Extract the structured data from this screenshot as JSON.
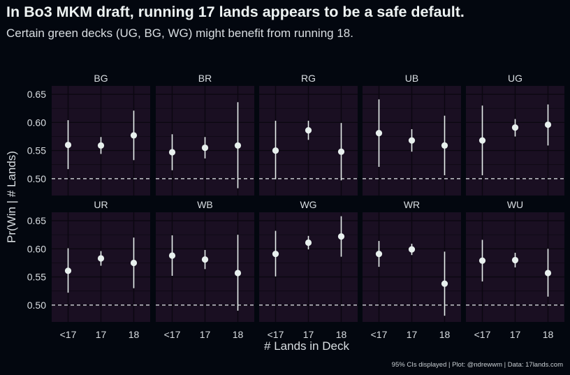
{
  "title": "In Bo3 MKM draft, running 17 lands appears to be a safe default.",
  "subtitle": "Certain green decks (UG, BG, WG) might benefit from running 18.",
  "caption": "95% CIs displayed | Plot: @ndrewwm | Data: 17lands.com",
  "colors": {
    "background": "#03070f",
    "panel": "#1a0f22",
    "grid": "#0b0710",
    "point": "#e8f0ee",
    "reference_line": "#e8eef0"
  },
  "chart_data": {
    "type": "scatter",
    "subtype": "point-range facet grid",
    "xlabel": "# Lands in Deck",
    "ylabel": "Pr(Win | # Lands)",
    "categories": [
      "<17",
      "17",
      "18"
    ],
    "ylim": [
      0.47,
      0.665
    ],
    "yticks": [
      0.5,
      0.55,
      0.6,
      0.65
    ],
    "ytick_labels": [
      "0.50",
      "0.55",
      "0.60",
      "0.65"
    ],
    "reference_line": {
      "y": 0.5,
      "style": "dashed"
    },
    "grid": true,
    "facets": [
      {
        "name": "BG",
        "values": [
          0.56,
          0.559,
          0.577
        ],
        "lower": [
          0.517,
          0.544,
          0.533
        ],
        "upper": [
          0.604,
          0.574,
          0.621
        ]
      },
      {
        "name": "BR",
        "values": [
          0.547,
          0.555,
          0.559
        ],
        "lower": [
          0.515,
          0.536,
          0.483
        ],
        "upper": [
          0.579,
          0.574,
          0.636
        ]
      },
      {
        "name": "RG",
        "values": [
          0.55,
          0.586,
          0.548
        ],
        "lower": [
          0.499,
          0.569,
          0.497
        ],
        "upper": [
          0.603,
          0.603,
          0.599
        ]
      },
      {
        "name": "UB",
        "values": [
          0.581,
          0.568,
          0.559
        ],
        "lower": [
          0.521,
          0.548,
          0.506
        ],
        "upper": [
          0.641,
          0.588,
          0.612
        ]
      },
      {
        "name": "UG",
        "values": [
          0.568,
          0.591,
          0.596
        ],
        "lower": [
          0.506,
          0.575,
          0.559
        ],
        "upper": [
          0.63,
          0.606,
          0.632
        ]
      },
      {
        "name": "UR",
        "values": [
          0.561,
          0.583,
          0.575
        ],
        "lower": [
          0.522,
          0.57,
          0.53
        ],
        "upper": [
          0.601,
          0.596,
          0.62
        ]
      },
      {
        "name": "WB",
        "values": [
          0.588,
          0.581,
          0.557
        ],
        "lower": [
          0.552,
          0.564,
          0.49
        ],
        "upper": [
          0.624,
          0.598,
          0.625
        ]
      },
      {
        "name": "WG",
        "values": [
          0.591,
          0.611,
          0.622
        ],
        "lower": [
          0.551,
          0.599,
          0.586
        ],
        "upper": [
          0.632,
          0.623,
          0.658
        ]
      },
      {
        "name": "WR",
        "values": [
          0.591,
          0.599,
          0.538
        ],
        "lower": [
          0.568,
          0.589,
          0.481
        ],
        "upper": [
          0.614,
          0.609,
          0.595
        ]
      },
      {
        "name": "WU",
        "values": [
          0.579,
          0.58,
          0.557
        ],
        "lower": [
          0.542,
          0.567,
          0.515
        ],
        "upper": [
          0.616,
          0.593,
          0.6
        ]
      }
    ]
  }
}
